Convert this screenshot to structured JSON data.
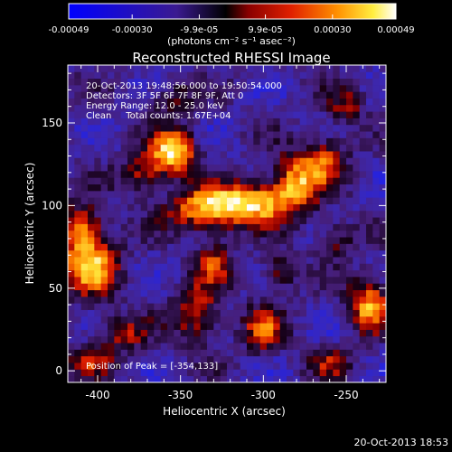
{
  "chart_data": {
    "type": "heatmap",
    "title": "Reconstructed RHESSI Image",
    "xlabel": "Heliocentric X (arcsec)",
    "ylabel": "Heliocentric Y (arcsec)",
    "xlim": [
      -418,
      -226
    ],
    "ylim": [
      -7,
      185
    ],
    "x_ticks": [
      -400,
      -350,
      -300,
      -250
    ],
    "y_ticks": [
      0,
      50,
      100,
      150
    ],
    "colorbar": {
      "range": [
        -0.00049,
        0.00049
      ],
      "tick_values": [
        -0.00049,
        -0.0003,
        -9.9e-05,
        9.9e-05,
        0.0003,
        0.00049
      ],
      "tick_labels": [
        "-0.00049",
        "-0.00030",
        "-9.9e-05",
        "9.9e-05",
        "0.00030",
        "0.00049"
      ],
      "unit_label": "(photons cm⁻² s⁻¹ asec⁻²)"
    },
    "annotations": [
      "20-Oct-2013 19:48:56.000 to 19:50:54.000",
      "Detectors: 3F 5F 6F 7F 8F 9F, Att 0",
      "Energy Range: 12.0 - 25.0 keV",
      "Clean     Total counts: 1.67E+04"
    ],
    "peak_label": "Position of Peak = [-354,133]",
    "peak": {
      "x": -354,
      "y": 133
    },
    "sources": [
      {
        "x": -354,
        "y": 133,
        "amp": 1.0,
        "sx": 9,
        "sy": 9
      },
      {
        "x": -372,
        "y": 120,
        "amp": 0.55,
        "sx": 10,
        "sy": 8
      },
      {
        "x": -335,
        "y": 98,
        "amp": 0.8,
        "sx": 16,
        "sy": 9
      },
      {
        "x": -305,
        "y": 102,
        "amp": 0.85,
        "sx": 16,
        "sy": 9
      },
      {
        "x": -280,
        "y": 115,
        "amp": 0.75,
        "sx": 10,
        "sy": 12
      },
      {
        "x": -262,
        "y": 128,
        "amp": 0.55,
        "sx": 9,
        "sy": 10
      },
      {
        "x": -405,
        "y": 65,
        "amp": 0.85,
        "sx": 12,
        "sy": 14
      },
      {
        "x": -410,
        "y": 88,
        "amp": 0.55,
        "sx": 9,
        "sy": 10
      },
      {
        "x": -236,
        "y": 40,
        "amp": 0.8,
        "sx": 9,
        "sy": 11
      },
      {
        "x": -340,
        "y": 35,
        "amp": 0.6,
        "sx": 10,
        "sy": 12
      },
      {
        "x": -300,
        "y": 25,
        "amp": 0.55,
        "sx": 9,
        "sy": 10
      },
      {
        "x": -385,
        "y": 22,
        "amp": 0.45,
        "sx": 11,
        "sy": 8
      },
      {
        "x": -330,
        "y": 65,
        "amp": 0.5,
        "sx": 8,
        "sy": 9
      },
      {
        "x": -290,
        "y": 60,
        "amp": 0.45,
        "sx": 7,
        "sy": 8
      },
      {
        "x": -255,
        "y": 80,
        "amp": 0.4,
        "sx": 8,
        "sy": 8
      },
      {
        "x": -355,
        "y": 165,
        "amp": 0.35,
        "sx": 10,
        "sy": 8
      },
      {
        "x": -250,
        "y": 160,
        "amp": 0.4,
        "sx": 8,
        "sy": 8
      },
      {
        "x": -405,
        "y": 5,
        "amp": 0.4,
        "sx": 10,
        "sy": 7
      },
      {
        "x": -260,
        "y": 5,
        "amp": 0.4,
        "sx": 9,
        "sy": 7
      }
    ]
  },
  "footer": {
    "timestamp": "20-Oct-2013 18:53"
  }
}
